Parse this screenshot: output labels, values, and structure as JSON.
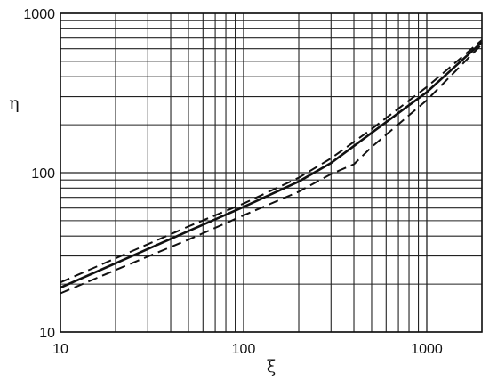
{
  "chart_data": {
    "type": "line",
    "title": "",
    "xlabel": "ξ",
    "ylabel": "η",
    "xscale": "log",
    "yscale": "log",
    "xlim": [
      10,
      2000
    ],
    "ylim": [
      10,
      1000
    ],
    "grid": true,
    "x_tick_labels": [
      {
        "value": 10,
        "label": "10"
      },
      {
        "value": 100,
        "label": "100"
      },
      {
        "value": 1000,
        "label": "1000"
      }
    ],
    "y_tick_labels": [
      {
        "value": 10,
        "label": "10"
      },
      {
        "value": 100,
        "label": "100"
      },
      {
        "value": 1000,
        "label": "1000"
      }
    ],
    "series": [
      {
        "style": "solid",
        "x": [
          10,
          20,
          50,
          100,
          200,
          300,
          500,
          1000,
          2000
        ],
        "y": [
          19,
          27,
          43,
          61,
          88,
          115,
          178,
          320,
          660
        ]
      },
      {
        "style": "dashed",
        "x": [
          10,
          20,
          50,
          100,
          200,
          300,
          500,
          1000,
          2000
        ],
        "y": [
          20.5,
          29,
          46,
          64,
          93,
          123,
          188,
          345,
          680
        ]
      },
      {
        "style": "dashed",
        "x": [
          10,
          20,
          50,
          100,
          200,
          300,
          400,
          500,
          1000,
          2000
        ],
        "y": [
          17.5,
          24.5,
          38,
          54,
          76,
          98,
          113,
          145,
          285,
          640
        ]
      }
    ]
  }
}
